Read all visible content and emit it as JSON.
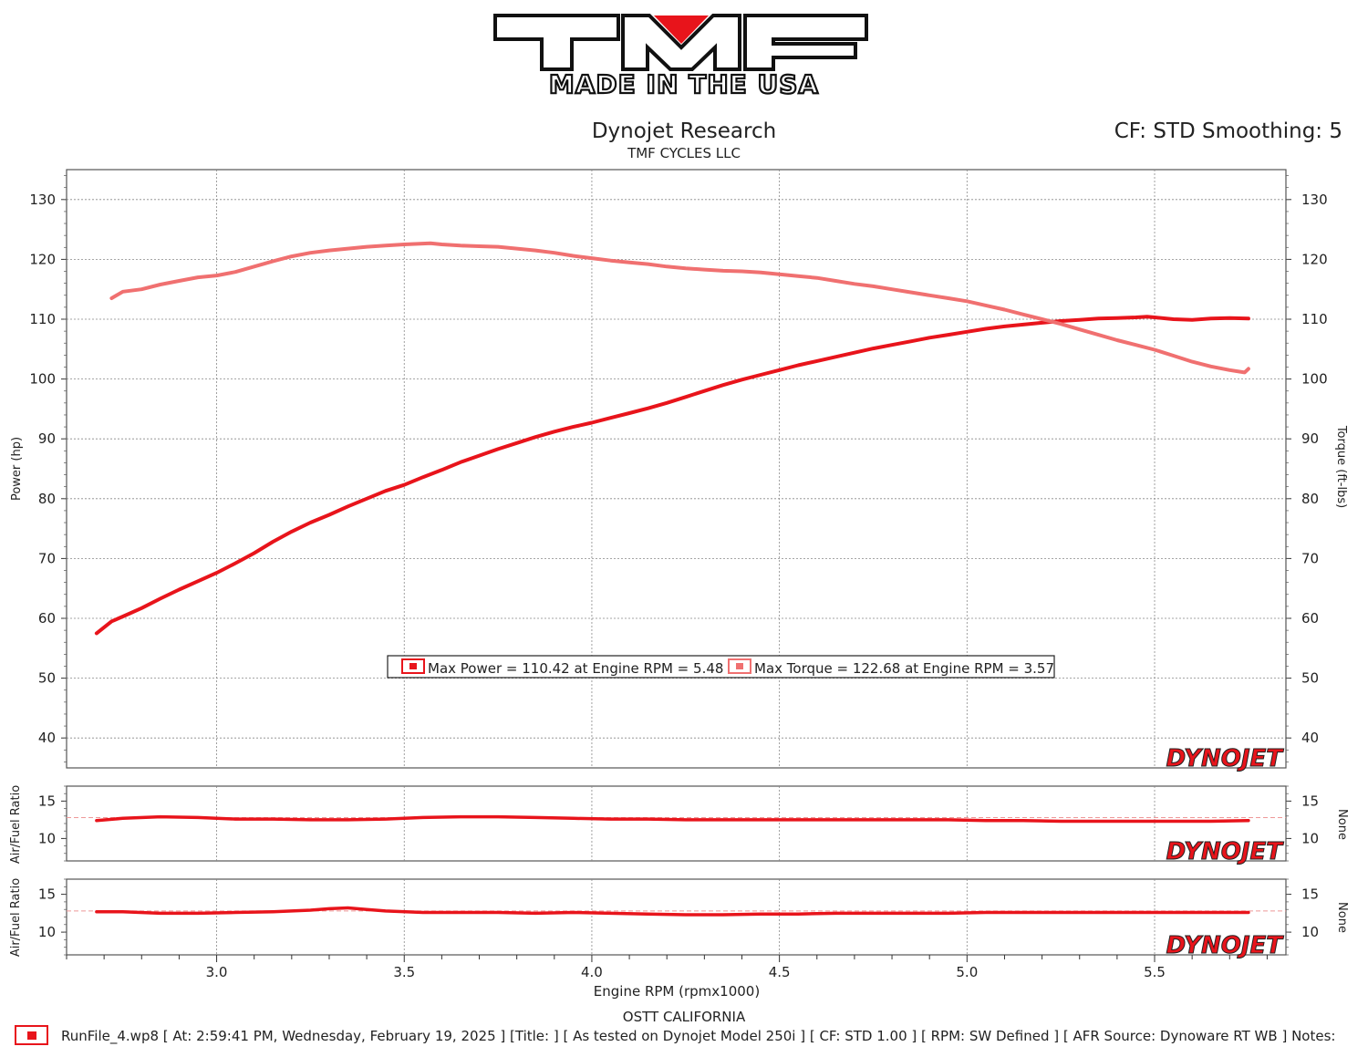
{
  "logo": {
    "brand": "TMF",
    "tagline": "MADE IN THE USA"
  },
  "header": {
    "title": "Dynojet Research",
    "subtitle": "TMF CYCLES LLC",
    "cf_text": "CF: STD Smoothing: 5"
  },
  "watermark": "DYNOJET",
  "legend": {
    "power_text": "Max Power = 110.42 at Engine RPM = 5.48",
    "torque_text": "Max Torque = 122.68 at Engine RPM = 3.57"
  },
  "footer": {
    "location": "OSTT CALIFORNIA",
    "run_info": "RunFile_4.wp8 [ At: 2:59:41 PM, Wednesday, February 19, 2025 ] [Title: ]  [ As tested on Dynojet Model 250i ] [ CF: STD 1.00 ] [ RPM: SW Defined ] [ AFR Source: Dynoware RT WB ] Notes:"
  },
  "colors": {
    "power": "#e8141b",
    "torque": "#f07070",
    "afr": "#e8141b",
    "grid": "#888888",
    "frame": "#555555"
  },
  "chart_data": [
    {
      "type": "line",
      "xlabel": "Engine RPM (rpmx1000)",
      "ylabel": "Power (hp)",
      "y2label": "Torque (ft-lbs)",
      "xlim": [
        2.6,
        5.85
      ],
      "ylim": [
        35,
        135
      ],
      "x_ticks": [
        "3.0",
        "3.5",
        "4.0",
        "4.5",
        "5.0",
        "5.5"
      ],
      "y_ticks": [
        "40",
        "50",
        "60",
        "70",
        "80",
        "90",
        "100",
        "110",
        "120",
        "130"
      ],
      "grid": true,
      "series": [
        {
          "name": "Max Power",
          "x": [
            2.68,
            2.72,
            2.75,
            2.8,
            2.85,
            2.9,
            2.95,
            3.0,
            3.05,
            3.1,
            3.15,
            3.2,
            3.25,
            3.3,
            3.35,
            3.4,
            3.45,
            3.5,
            3.55,
            3.6,
            3.65,
            3.7,
            3.75,
            3.8,
            3.85,
            3.9,
            3.95,
            4.0,
            4.05,
            4.1,
            4.15,
            4.2,
            4.25,
            4.3,
            4.35,
            4.4,
            4.45,
            4.5,
            4.55,
            4.6,
            4.65,
            4.7,
            4.75,
            4.8,
            4.85,
            4.9,
            4.95,
            5.0,
            5.05,
            5.1,
            5.15,
            5.2,
            5.25,
            5.3,
            5.35,
            5.4,
            5.45,
            5.48,
            5.5,
            5.55,
            5.6,
            5.65,
            5.7,
            5.75
          ],
          "values": [
            57.5,
            59.5,
            60.3,
            61.7,
            63.3,
            64.8,
            66.2,
            67.6,
            69.2,
            70.9,
            72.8,
            74.5,
            76.0,
            77.3,
            78.7,
            80.0,
            81.3,
            82.3,
            83.6,
            84.8,
            86.1,
            87.2,
            88.3,
            89.3,
            90.3,
            91.2,
            92.0,
            92.7,
            93.5,
            94.3,
            95.1,
            96.0,
            97.0,
            98.0,
            99.0,
            99.9,
            100.7,
            101.5,
            102.3,
            103.0,
            103.7,
            104.4,
            105.1,
            105.7,
            106.3,
            106.9,
            107.4,
            107.9,
            108.4,
            108.8,
            109.1,
            109.4,
            109.7,
            109.9,
            110.1,
            110.2,
            110.3,
            110.42,
            110.3,
            110.0,
            109.9,
            110.1,
            110.2,
            110.1
          ]
        },
        {
          "name": "Max Torque",
          "x": [
            2.72,
            2.75,
            2.8,
            2.85,
            2.9,
            2.95,
            3.0,
            3.05,
            3.1,
            3.15,
            3.2,
            3.25,
            3.3,
            3.35,
            3.4,
            3.45,
            3.5,
            3.57,
            3.6,
            3.65,
            3.7,
            3.75,
            3.8,
            3.85,
            3.9,
            3.95,
            4.0,
            4.05,
            4.1,
            4.15,
            4.2,
            4.25,
            4.3,
            4.35,
            4.4,
            4.45,
            4.5,
            4.55,
            4.6,
            4.65,
            4.7,
            4.75,
            4.8,
            4.85,
            4.9,
            4.95,
            5.0,
            5.05,
            5.1,
            5.15,
            5.2,
            5.25,
            5.3,
            5.35,
            5.4,
            5.45,
            5.5,
            5.55,
            5.6,
            5.65,
            5.7,
            5.74,
            5.75
          ],
          "values": [
            113.5,
            114.6,
            115.0,
            115.8,
            116.4,
            117.0,
            117.3,
            117.9,
            118.8,
            119.7,
            120.5,
            121.1,
            121.5,
            121.8,
            122.1,
            122.3,
            122.5,
            122.68,
            122.5,
            122.3,
            122.2,
            122.1,
            121.8,
            121.5,
            121.1,
            120.6,
            120.2,
            119.8,
            119.5,
            119.2,
            118.8,
            118.5,
            118.3,
            118.1,
            118.0,
            117.8,
            117.5,
            117.2,
            116.9,
            116.4,
            115.9,
            115.5,
            115.0,
            114.5,
            114.0,
            113.5,
            113.0,
            112.3,
            111.6,
            110.8,
            110.0,
            109.2,
            108.3,
            107.4,
            106.5,
            105.7,
            104.9,
            103.9,
            102.9,
            102.1,
            101.5,
            101.1,
            101.7
          ]
        }
      ]
    },
    {
      "type": "line",
      "ylabel": "Air/Fuel Ratio",
      "y2label": "None",
      "xlim": [
        2.6,
        5.85
      ],
      "ylim": [
        7,
        17
      ],
      "y_ticks": [
        "10",
        "15"
      ],
      "reference_line": 12.8,
      "grid": true,
      "series": [
        {
          "name": "AFR",
          "x": [
            2.68,
            2.75,
            2.85,
            2.95,
            3.05,
            3.15,
            3.25,
            3.35,
            3.45,
            3.55,
            3.65,
            3.75,
            3.85,
            3.95,
            4.05,
            4.15,
            4.25,
            4.35,
            4.45,
            4.55,
            4.65,
            4.75,
            4.85,
            4.95,
            5.05,
            5.15,
            5.25,
            5.35,
            5.45,
            5.55,
            5.65,
            5.75
          ],
          "values": [
            12.4,
            12.7,
            12.9,
            12.8,
            12.6,
            12.6,
            12.5,
            12.5,
            12.6,
            12.8,
            12.9,
            12.9,
            12.8,
            12.7,
            12.6,
            12.6,
            12.5,
            12.5,
            12.5,
            12.5,
            12.5,
            12.5,
            12.5,
            12.5,
            12.4,
            12.4,
            12.3,
            12.3,
            12.3,
            12.3,
            12.3,
            12.4
          ]
        }
      ]
    },
    {
      "type": "line",
      "ylabel": "Air/Fuel Ratio",
      "y2label": "None",
      "xlim": [
        2.6,
        5.85
      ],
      "ylim": [
        7,
        17
      ],
      "y_ticks": [
        "10",
        "15"
      ],
      "reference_line": 12.8,
      "grid": true,
      "series": [
        {
          "name": "AFR",
          "x": [
            2.68,
            2.75,
            2.85,
            2.95,
            3.05,
            3.15,
            3.25,
            3.3,
            3.35,
            3.4,
            3.45,
            3.55,
            3.65,
            3.75,
            3.85,
            3.95,
            4.05,
            4.15,
            4.25,
            4.35,
            4.45,
            4.55,
            4.65,
            4.75,
            4.85,
            4.95,
            5.05,
            5.15,
            5.25,
            5.35,
            5.45,
            5.55,
            5.65,
            5.75
          ],
          "values": [
            12.7,
            12.7,
            12.5,
            12.5,
            12.6,
            12.7,
            12.9,
            13.1,
            13.2,
            13.0,
            12.8,
            12.6,
            12.6,
            12.6,
            12.5,
            12.6,
            12.5,
            12.4,
            12.3,
            12.3,
            12.4,
            12.4,
            12.5,
            12.5,
            12.5,
            12.5,
            12.6,
            12.6,
            12.6,
            12.6,
            12.6,
            12.6,
            12.6,
            12.6
          ]
        }
      ]
    }
  ]
}
